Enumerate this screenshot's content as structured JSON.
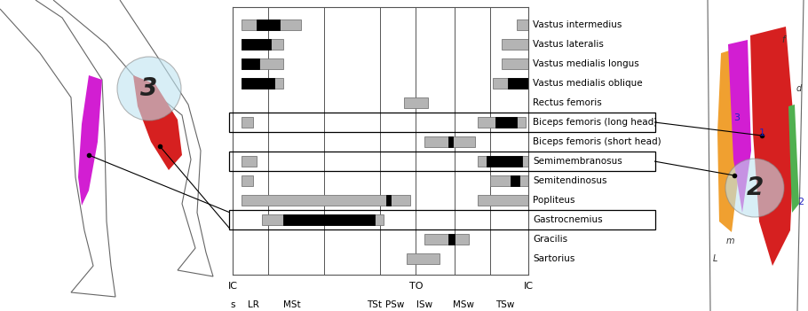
{
  "chart_data": {
    "type": "timeline",
    "xlim": [
      0,
      100
    ],
    "phase_boundaries": [
      0,
      12,
      31,
      50,
      62,
      75,
      87,
      100
    ],
    "events": [
      {
        "label": "IC",
        "at": 0
      },
      {
        "label": "TO",
        "at": 62
      },
      {
        "label": "IC",
        "at": 100
      }
    ],
    "phase_labels": [
      {
        "label": "s",
        "at": 0
      },
      {
        "label": "LR",
        "at": 7
      },
      {
        "label": "MSt",
        "at": 20
      },
      {
        "label": "TSt",
        "at": 48
      },
      {
        "label": "PSw",
        "at": 55
      },
      {
        "label": "ISw",
        "at": 65
      },
      {
        "label": "MSw",
        "at": 78
      },
      {
        "label": "TSw",
        "at": 92
      }
    ],
    "rows": [
      {
        "name": "Vastus intermedius",
        "low": [
          [
            3,
            23
          ],
          [
            96,
            100
          ]
        ],
        "high": [
          [
            8,
            16
          ]
        ],
        "highlight": false
      },
      {
        "name": "Vastus lateralis",
        "low": [
          [
            3,
            17
          ],
          [
            91,
            100
          ]
        ],
        "high": [
          [
            3,
            13
          ]
        ],
        "highlight": false
      },
      {
        "name": "Vastus medialis longus",
        "low": [
          [
            3,
            17
          ],
          [
            91,
            100
          ]
        ],
        "high": [
          [
            3,
            9
          ]
        ],
        "highlight": false
      },
      {
        "name": "Vastus medialis oblique",
        "low": [
          [
            3,
            17
          ],
          [
            88,
            100
          ]
        ],
        "high": [
          [
            3,
            14
          ],
          [
            93,
            100
          ]
        ],
        "highlight": false
      },
      {
        "name": "Rectus femoris",
        "low": [
          [
            58,
            66
          ]
        ],
        "high": [],
        "highlight": false
      },
      {
        "name": "Biceps femoris (long head)",
        "low": [
          [
            3,
            7
          ],
          [
            83,
            99
          ]
        ],
        "high": [
          [
            89,
            96
          ]
        ],
        "highlight": true
      },
      {
        "name": "Biceps femoris (short head)",
        "low": [
          [
            65,
            82
          ]
        ],
        "high": [
          [
            73,
            74.5
          ]
        ],
        "highlight": false
      },
      {
        "name": "Semimembranosus",
        "low": [
          [
            3,
            8
          ],
          [
            83,
            100
          ]
        ],
        "high": [
          [
            86,
            98
          ]
        ],
        "highlight": true
      },
      {
        "name": "Semitendinosus",
        "low": [
          [
            3,
            7
          ],
          [
            87,
            100
          ]
        ],
        "high": [
          [
            94,
            97
          ]
        ],
        "highlight": false
      },
      {
        "name": "Popliteus",
        "low": [
          [
            3,
            60
          ],
          [
            83,
            100
          ]
        ],
        "high": [
          [
            52,
            53.5
          ]
        ],
        "highlight": false
      },
      {
        "name": "Gastrocnemius",
        "low": [
          [
            10,
            51
          ]
        ],
        "high": [
          [
            17,
            48
          ]
        ],
        "highlight": true
      },
      {
        "name": "Gracilis",
        "low": [
          [
            65,
            80
          ]
        ],
        "high": [
          [
            73,
            75
          ]
        ],
        "highlight": false
      },
      {
        "name": "Sartorius",
        "low": [
          [
            59,
            70
          ]
        ],
        "high": [],
        "highlight": false
      }
    ],
    "anatomy": {
      "left_circle": "3",
      "right_circle": "2",
      "right_labels": [
        "3",
        "1",
        "2"
      ],
      "letters": [
        "d",
        "f",
        "L",
        "m"
      ]
    }
  }
}
